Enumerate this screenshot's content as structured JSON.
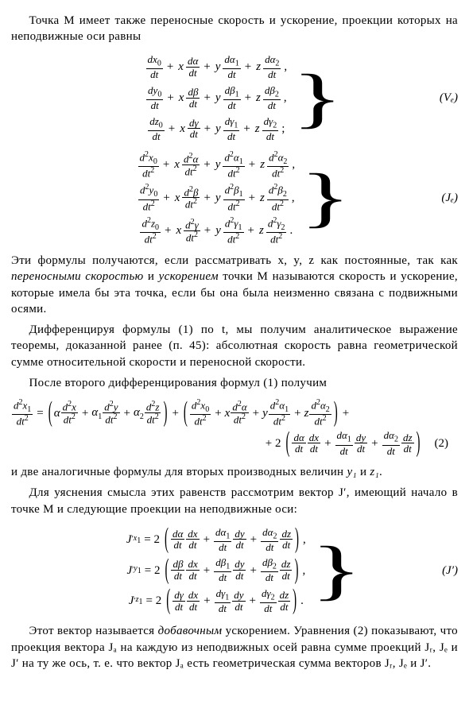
{
  "para1": "Точка M имеет также переносные скорость и ускорение, проек­ции которых на неподвижные оси равны",
  "group_Ve": {
    "label": "(Vₑ)",
    "rows": [
      {
        "base": "x",
        "c": "α",
        "c1": "α",
        "c2": "α",
        "order": "1",
        "end": ","
      },
      {
        "base": "y",
        "c": "β",
        "c1": "β",
        "c2": "β",
        "order": "1",
        "end": ","
      },
      {
        "base": "z",
        "c": "γ",
        "c1": "γ",
        "c2": "γ",
        "order": "1",
        "end": ";"
      }
    ]
  },
  "group_Je": {
    "label": "(Jₑ)",
    "rows": [
      {
        "base": "x",
        "c": "α",
        "c1": "α",
        "c2": "α",
        "order": "2",
        "end": ","
      },
      {
        "base": "y",
        "c": "β",
        "c1": "β",
        "c2": "β",
        "order": "2",
        "end": ","
      },
      {
        "base": "z",
        "c": "γ",
        "c1": "γ",
        "c2": "γ",
        "order": "2",
        "end": "."
      }
    ]
  },
  "para2_a": "Эти формулы получаются, если рассматривать x, y, z как постоян­ные, так как ",
  "para2_em1": "переносными скоростью",
  "para2_mid": " и ",
  "para2_em2": "ускорением",
  "para2_b": " точки M на­зываются скорость и ускорение, которые имела бы эта точка, если бы она была неизменно связана с подвижными осями.",
  "para3": "Дифференцируя формулы (1) по t, мы получим аналитическое выражение теоремы, доказанной ранее (п. 45): абсолютная скорость равна геометрической сумме относительной скорости и переносной скорости.",
  "para4": "После второго дифференцирования формул (1) получим",
  "eq2": {
    "label": "(2)"
  },
  "para5_a": "и две аналогичные формулы для вторых производных величин ",
  "para5_y1": "y₁",
  "para5_mid": " и ",
  "para5_z1": "z₁",
  "para5_b": ".",
  "para6_a": "Для уяснения смысла этих равенств рассмотрим вектор J′, имеющий начало в точке M и следующие проекции на неподвижные оси:",
  "group_Jp": {
    "label": "(J′)",
    "rows": [
      {
        "var": "x",
        "c": "α",
        "c1": "α",
        "c2": "α",
        "end": ","
      },
      {
        "var": "y",
        "c": "β",
        "c1": "β",
        "c2": "β",
        "end": ","
      },
      {
        "var": "z",
        "c": "γ",
        "c1": "γ",
        "c2": "γ",
        "end": "."
      }
    ]
  },
  "para7_a": "Этот вектор называется ",
  "para7_em": "добавочным",
  "para7_b": " ускорением. Уравнения (2) показывают, что проекция вектора Jₐ на каждую из неподвижных осей равна сумме проекций Jᵣ, Jₑ и J′ на ту же ось, т. е. что вектор Jₐ есть геометрическая сумма векторов Jᵣ, Jₑ и J′."
}
